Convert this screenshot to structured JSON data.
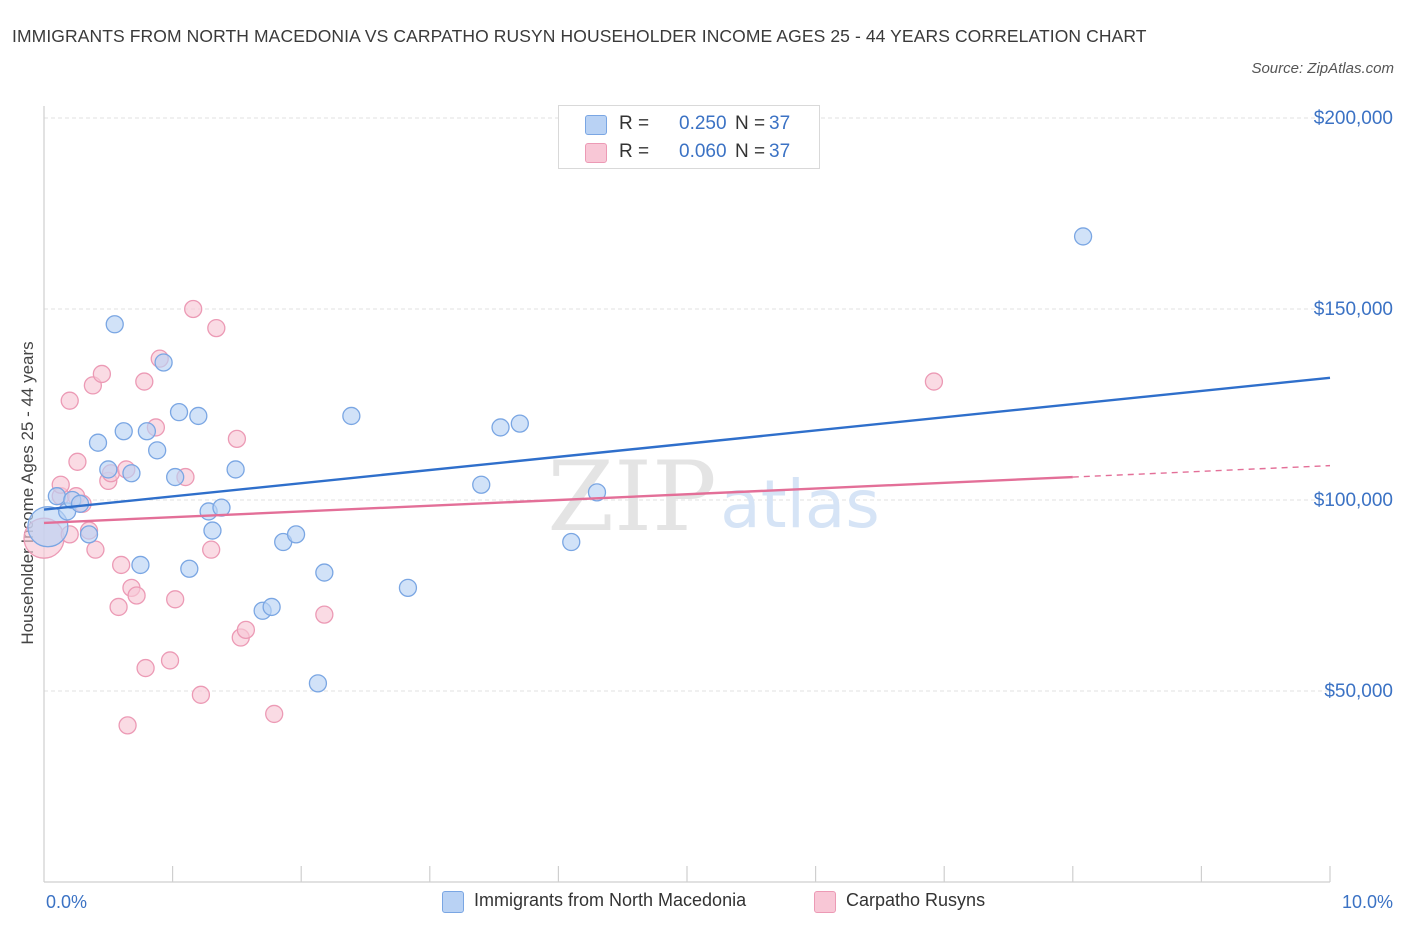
{
  "title": "IMMIGRANTS FROM NORTH MACEDONIA VS CARPATHO RUSYN HOUSEHOLDER INCOME AGES 25 - 44 YEARS CORRELATION CHART",
  "source": "Source: ZipAtlas.com",
  "watermark": {
    "zip": "ZIP",
    "atlas": "atlas"
  },
  "legend_top": [
    {
      "r_label": "R =",
      "r_value": "0.250",
      "n_label": "N =",
      "n_value": "37"
    },
    {
      "r_label": "R =",
      "r_value": "0.060",
      "n_label": "N =",
      "n_value": "37"
    }
  ],
  "legend_bottom": [
    "Immigrants from North Macedonia",
    "Carpatho Rusyns"
  ],
  "colors": {
    "blue_fill": "#b9d2f4",
    "blue_stroke": "#7aa6e3",
    "blue_line": "#2f6fcb",
    "pink_fill": "#f8c7d6",
    "pink_stroke": "#ec9ab5",
    "pink_line": "#e36f98",
    "axis_text": "#3b72c4",
    "grid": "#e2e2e2"
  },
  "chart_data": {
    "type": "scatter",
    "title": "IMMIGRANTS FROM NORTH MACEDONIA VS CARPATHO RUSYN HOUSEHOLDER INCOME AGES 25 - 44 YEARS CORRELATION CHART",
    "xlabel": "",
    "ylabel": "Householder Income Ages 25 - 44 years",
    "xlim": [
      0,
      10
    ],
    "ylim": [
      0,
      200000
    ],
    "x_tick_labels": [
      "0.0%",
      "10.0%"
    ],
    "y_tick_labels": [
      "$200,000",
      "$150,000",
      "$100,000",
      "$50,000"
    ],
    "y_ticks": [
      200000,
      150000,
      100000,
      50000
    ],
    "grid": true,
    "legend_placement": "bottom",
    "series": [
      {
        "name": "Immigrants from North Macedonia",
        "r": 0.25,
        "n": 37,
        "trend": {
          "x": [
            0.0,
            10.0
          ],
          "y": [
            97500,
            132000
          ]
        },
        "points": [
          {
            "x": 0.03,
            "y": 93000,
            "big": true
          },
          {
            "x": 0.1,
            "y": 101000
          },
          {
            "x": 0.18,
            "y": 97000
          },
          {
            "x": 0.22,
            "y": 100000
          },
          {
            "x": 0.28,
            "y": 99000
          },
          {
            "x": 0.35,
            "y": 91000
          },
          {
            "x": 0.42,
            "y": 115000
          },
          {
            "x": 0.5,
            "y": 108000
          },
          {
            "x": 0.55,
            "y": 146000
          },
          {
            "x": 0.62,
            "y": 118000
          },
          {
            "x": 0.68,
            "y": 107000
          },
          {
            "x": 0.75,
            "y": 83000
          },
          {
            "x": 0.8,
            "y": 118000
          },
          {
            "x": 0.88,
            "y": 113000
          },
          {
            "x": 0.93,
            "y": 136000
          },
          {
            "x": 1.02,
            "y": 106000
          },
          {
            "x": 1.05,
            "y": 123000
          },
          {
            "x": 1.13,
            "y": 82000
          },
          {
            "x": 1.2,
            "y": 122000
          },
          {
            "x": 1.28,
            "y": 97000
          },
          {
            "x": 1.31,
            "y": 92000
          },
          {
            "x": 1.38,
            "y": 98000
          },
          {
            "x": 1.49,
            "y": 108000
          },
          {
            "x": 1.7,
            "y": 71000
          },
          {
            "x": 1.77,
            "y": 72000
          },
          {
            "x": 1.86,
            "y": 89000
          },
          {
            "x": 1.96,
            "y": 91000
          },
          {
            "x": 2.13,
            "y": 52000
          },
          {
            "x": 2.18,
            "y": 81000
          },
          {
            "x": 2.39,
            "y": 122000
          },
          {
            "x": 2.83,
            "y": 77000
          },
          {
            "x": 3.4,
            "y": 104000
          },
          {
            "x": 3.55,
            "y": 119000
          },
          {
            "x": 3.7,
            "y": 120000
          },
          {
            "x": 4.1,
            "y": 89000
          },
          {
            "x": 4.3,
            "y": 102000
          },
          {
            "x": 8.08,
            "y": 169000
          }
        ]
      },
      {
        "name": "Carpatho Rusyns",
        "r": 0.06,
        "n": 37,
        "trend": {
          "x": [
            0.0,
            10.0
          ],
          "y": [
            94000,
            109000
          ],
          "solid_until": 8.0
        },
        "points": [
          {
            "x": 0.0,
            "y": 90000,
            "big": true
          },
          {
            "x": 0.13,
            "y": 101000
          },
          {
            "x": 0.13,
            "y": 104000
          },
          {
            "x": 0.2,
            "y": 91000
          },
          {
            "x": 0.2,
            "y": 126000
          },
          {
            "x": 0.25,
            "y": 101000
          },
          {
            "x": 0.26,
            "y": 110000
          },
          {
            "x": 0.3,
            "y": 99000
          },
          {
            "x": 0.35,
            "y": 92000
          },
          {
            "x": 0.38,
            "y": 130000
          },
          {
            "x": 0.4,
            "y": 87000
          },
          {
            "x": 0.45,
            "y": 133000
          },
          {
            "x": 0.5,
            "y": 105000
          },
          {
            "x": 0.52,
            "y": 107000
          },
          {
            "x": 0.58,
            "y": 72000
          },
          {
            "x": 0.6,
            "y": 83000
          },
          {
            "x": 0.64,
            "y": 108000
          },
          {
            "x": 0.65,
            "y": 41000
          },
          {
            "x": 0.68,
            "y": 77000
          },
          {
            "x": 0.72,
            "y": 75000
          },
          {
            "x": 0.78,
            "y": 131000
          },
          {
            "x": 0.79,
            "y": 56000
          },
          {
            "x": 0.87,
            "y": 119000
          },
          {
            "x": 0.9,
            "y": 137000
          },
          {
            "x": 0.98,
            "y": 58000
          },
          {
            "x": 1.02,
            "y": 74000
          },
          {
            "x": 1.1,
            "y": 106000
          },
          {
            "x": 1.16,
            "y": 150000
          },
          {
            "x": 1.22,
            "y": 49000
          },
          {
            "x": 1.3,
            "y": 87000
          },
          {
            "x": 1.34,
            "y": 145000
          },
          {
            "x": 1.5,
            "y": 116000
          },
          {
            "x": 1.53,
            "y": 64000
          },
          {
            "x": 1.57,
            "y": 66000
          },
          {
            "x": 1.79,
            "y": 44000
          },
          {
            "x": 2.18,
            "y": 70000
          },
          {
            "x": 6.92,
            "y": 131000
          }
        ]
      }
    ]
  }
}
